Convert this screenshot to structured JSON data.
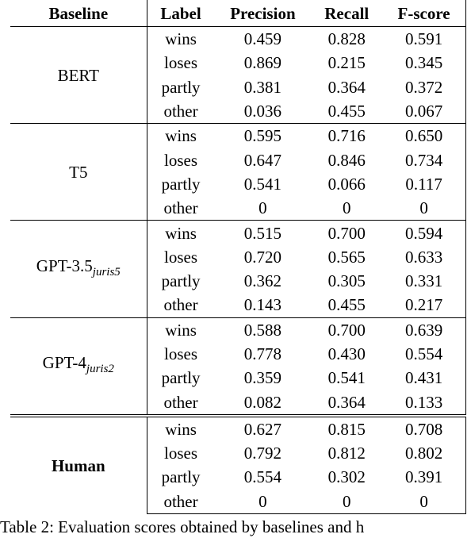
{
  "table": {
    "header": [
      "Baseline",
      "Label",
      "Precision",
      "Recall",
      "F-score"
    ],
    "groups": [
      {
        "baseline": "BERT",
        "rows": [
          [
            "wins",
            "0.459",
            "0.828",
            "0.591"
          ],
          [
            "loses",
            "0.869",
            "0.215",
            "0.345"
          ],
          [
            "partly",
            "0.381",
            "0.364",
            "0.372"
          ],
          [
            "other",
            "0.036",
            "0.455",
            "0.067"
          ]
        ]
      },
      {
        "baseline": "T5",
        "rows": [
          [
            "wins",
            "0.595",
            "0.716",
            "0.650"
          ],
          [
            "loses",
            "0.647",
            "0.846",
            "0.734"
          ],
          [
            "partly",
            "0.541",
            "0.066",
            "0.117"
          ],
          [
            "other",
            "0",
            "0",
            "0"
          ]
        ]
      },
      {
        "baseline": "GPT-3.5",
        "sub": "juris5",
        "rows": [
          [
            "wins",
            "0.515",
            "0.700",
            "0.594"
          ],
          [
            "loses",
            "0.720",
            "0.565",
            "0.633"
          ],
          [
            "partly",
            "0.362",
            "0.305",
            "0.331"
          ],
          [
            "other",
            "0.143",
            "0.455",
            "0.217"
          ]
        ]
      },
      {
        "baseline": "GPT-4",
        "sub": "juris2",
        "rows": [
          [
            "wins",
            "0.588",
            "0.700",
            "0.639"
          ],
          [
            "loses",
            "0.778",
            "0.430",
            "0.554"
          ],
          [
            "partly",
            "0.359",
            "0.541",
            "0.431"
          ],
          [
            "other",
            "0.082",
            "0.364",
            "0.133"
          ]
        ]
      },
      {
        "baseline": "Human",
        "bold": true,
        "rows": [
          [
            "wins",
            "0.627",
            "0.815",
            "0.708"
          ],
          [
            "loses",
            "0.792",
            "0.812",
            "0.802"
          ],
          [
            "partly",
            "0.554",
            "0.302",
            "0.391"
          ],
          [
            "other",
            "0",
            "0",
            "0"
          ]
        ]
      }
    ]
  },
  "caption": "Table 2: Evaluation scores obtained by baselines and h"
}
